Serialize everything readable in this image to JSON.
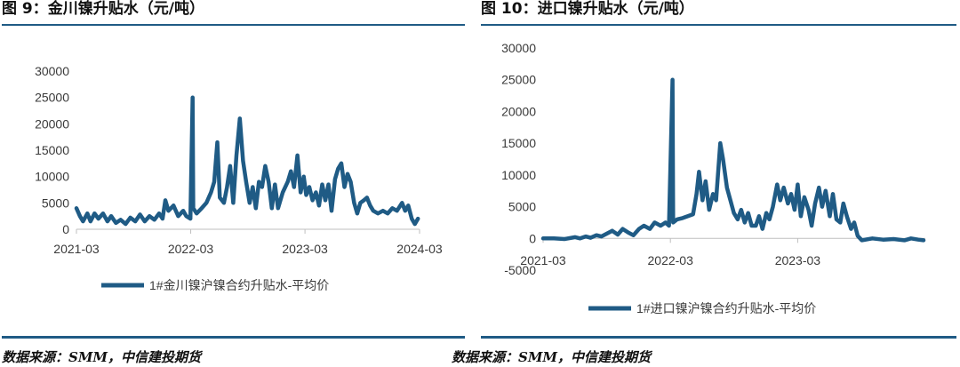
{
  "left": {
    "figure_title": "图 9：金川镍升贴水（元/吨）",
    "source": "数据来源：SMM，中信建投期货",
    "chart_data": {
      "type": "line",
      "title": "",
      "xlabel": "",
      "ylabel": "",
      "x_ticks": [
        "2021-03",
        "2022-03",
        "2023-03",
        "2024-03"
      ],
      "y_ticks": [
        "0",
        "5000",
        "10000",
        "15000",
        "20000",
        "25000",
        "30000"
      ],
      "ylim": [
        0,
        30000
      ],
      "xlim": [
        "2021-03-01",
        "2024-03-01"
      ],
      "grid": false,
      "legend_position": "bottom",
      "color": "#1f5b85",
      "series": [
        {
          "name": "1#金川镍沪镍合约升贴水-平均价",
          "points": [
            [
              "2021-03-01",
              4000
            ],
            [
              "2021-03-12",
              2500
            ],
            [
              "2021-03-22",
              1500
            ],
            [
              "2021-04-05",
              3000
            ],
            [
              "2021-04-15",
              1500
            ],
            [
              "2021-04-28",
              3000
            ],
            [
              "2021-05-10",
              2000
            ],
            [
              "2021-05-25",
              3000
            ],
            [
              "2021-06-08",
              1500
            ],
            [
              "2021-06-20",
              2500
            ],
            [
              "2021-07-05",
              1200
            ],
            [
              "2021-07-20",
              1800
            ],
            [
              "2021-08-05",
              1000
            ],
            [
              "2021-08-20",
              2200
            ],
            [
              "2021-09-05",
              1500
            ],
            [
              "2021-09-20",
              2800
            ],
            [
              "2021-10-05",
              1500
            ],
            [
              "2021-10-20",
              2500
            ],
            [
              "2021-11-05",
              1800
            ],
            [
              "2021-11-20",
              3000
            ],
            [
              "2021-12-01",
              2000
            ],
            [
              "2021-12-10",
              5500
            ],
            [
              "2021-12-20",
              3500
            ],
            [
              "2022-01-05",
              4500
            ],
            [
              "2022-01-20",
              2500
            ],
            [
              "2022-02-05",
              3500
            ],
            [
              "2022-02-15",
              2500
            ],
            [
              "2022-02-28",
              2000
            ],
            [
              "2022-03-07",
              25000
            ],
            [
              "2022-03-09",
              4000
            ],
            [
              "2022-03-20",
              3000
            ],
            [
              "2022-04-05",
              4000
            ],
            [
              "2022-04-20",
              5000
            ],
            [
              "2022-05-05",
              7000
            ],
            [
              "2022-05-15",
              9000
            ],
            [
              "2022-05-25",
              16500
            ],
            [
              "2022-06-02",
              6000
            ],
            [
              "2022-06-15",
              5000
            ],
            [
              "2022-06-25",
              8000
            ],
            [
              "2022-07-05",
              12000
            ],
            [
              "2022-07-15",
              5000
            ],
            [
              "2022-07-25",
              14000
            ],
            [
              "2022-08-05",
              21000
            ],
            [
              "2022-08-15",
              13000
            ],
            [
              "2022-08-25",
              9000
            ],
            [
              "2022-09-05",
              5000
            ],
            [
              "2022-09-15",
              8000
            ],
            [
              "2022-09-25",
              4000
            ],
            [
              "2022-10-05",
              9000
            ],
            [
              "2022-10-15",
              8000
            ],
            [
              "2022-10-25",
              12000
            ],
            [
              "2022-11-05",
              9000
            ],
            [
              "2022-11-15",
              4000
            ],
            [
              "2022-11-25",
              8500
            ],
            [
              "2022-12-05",
              4000
            ],
            [
              "2022-12-20",
              7000
            ],
            [
              "2023-01-05",
              9000
            ],
            [
              "2023-01-15",
              11000
            ],
            [
              "2023-01-25",
              8000
            ],
            [
              "2023-02-05",
              14000
            ],
            [
              "2023-02-15",
              7000
            ],
            [
              "2023-02-25",
              10000
            ],
            [
              "2023-03-05",
              6500
            ],
            [
              "2023-03-15",
              8000
            ],
            [
              "2023-03-25",
              5500
            ],
            [
              "2023-04-05",
              7000
            ],
            [
              "2023-04-15",
              4500
            ],
            [
              "2023-04-25",
              8500
            ],
            [
              "2023-05-05",
              5500
            ],
            [
              "2023-05-15",
              8500
            ],
            [
              "2023-05-25",
              3500
            ],
            [
              "2023-06-05",
              9500
            ],
            [
              "2023-06-15",
              11500
            ],
            [
              "2023-06-25",
              12500
            ],
            [
              "2023-07-05",
              8000
            ],
            [
              "2023-07-15",
              10500
            ],
            [
              "2023-07-25",
              9000
            ],
            [
              "2023-08-05",
              5000
            ],
            [
              "2023-08-15",
              3000
            ],
            [
              "2023-08-25",
              5000
            ],
            [
              "2023-09-05",
              5500
            ],
            [
              "2023-09-15",
              6000
            ],
            [
              "2023-09-25",
              4500
            ],
            [
              "2023-10-05",
              3500
            ],
            [
              "2023-10-20",
              3000
            ],
            [
              "2023-11-05",
              3500
            ],
            [
              "2023-11-20",
              3000
            ],
            [
              "2023-12-05",
              4000
            ],
            [
              "2023-12-20",
              3500
            ],
            [
              "2024-01-05",
              5000
            ],
            [
              "2024-01-15",
              3500
            ],
            [
              "2024-01-25",
              4500
            ],
            [
              "2024-02-05",
              2000
            ],
            [
              "2024-02-15",
              1000
            ],
            [
              "2024-02-25",
              2000
            ]
          ]
        }
      ]
    }
  },
  "right": {
    "figure_title": "图 10：进口镍升贴水（元/吨）",
    "source": "数据来源：SMM，中信建投期货",
    "chart_data": {
      "type": "line",
      "title": "",
      "xlabel": "",
      "ylabel": "",
      "x_ticks": [
        "2021-03",
        "2022-03",
        "2023-03"
      ],
      "y_ticks": [
        "-5000",
        "0",
        "5000",
        "10000",
        "15000",
        "20000",
        "25000",
        "30000"
      ],
      "ylim": [
        -5000,
        30000
      ],
      "xlim": [
        "2021-03-01",
        "2024-03-01"
      ],
      "grid": false,
      "legend_position": "bottom",
      "color": "#1f5b85",
      "series": [
        {
          "name": "1#进口镍沪镍合约升贴水-平均价",
          "points": [
            [
              "2021-03-01",
              0
            ],
            [
              "2021-04-01",
              0
            ],
            [
              "2021-05-01",
              -100
            ],
            [
              "2021-06-01",
              200
            ],
            [
              "2021-06-15",
              0
            ],
            [
              "2021-07-01",
              300
            ],
            [
              "2021-07-15",
              100
            ],
            [
              "2021-08-01",
              500
            ],
            [
              "2021-08-15",
              300
            ],
            [
              "2021-09-01",
              800
            ],
            [
              "2021-09-15",
              1200
            ],
            [
              "2021-10-01",
              600
            ],
            [
              "2021-10-15",
              1500
            ],
            [
              "2021-11-01",
              900
            ],
            [
              "2021-11-15",
              500
            ],
            [
              "2021-12-01",
              1500
            ],
            [
              "2021-12-15",
              2000
            ],
            [
              "2022-01-01",
              1500
            ],
            [
              "2022-01-15",
              2500
            ],
            [
              "2022-02-01",
              2000
            ],
            [
              "2022-02-15",
              2500
            ],
            [
              "2022-02-25",
              2000
            ],
            [
              "2022-03-07",
              25000
            ],
            [
              "2022-03-09",
              2500
            ],
            [
              "2022-03-20",
              3000
            ],
            [
              "2022-04-05",
              3200
            ],
            [
              "2022-04-20",
              3500
            ],
            [
              "2022-05-05",
              3800
            ],
            [
              "2022-05-15",
              7000
            ],
            [
              "2022-05-22",
              10500
            ],
            [
              "2022-06-01",
              6000
            ],
            [
              "2022-06-10",
              9000
            ],
            [
              "2022-06-20",
              4500
            ],
            [
              "2022-07-01",
              7000
            ],
            [
              "2022-07-10",
              6000
            ],
            [
              "2022-07-22",
              15000
            ],
            [
              "2022-07-30",
              12500
            ],
            [
              "2022-08-10",
              8000
            ],
            [
              "2022-08-20",
              6000
            ],
            [
              "2022-08-30",
              4000
            ],
            [
              "2022-09-10",
              3000
            ],
            [
              "2022-09-20",
              4500
            ],
            [
              "2022-09-30",
              2500
            ],
            [
              "2022-10-10",
              4000
            ],
            [
              "2022-10-20",
              2000
            ],
            [
              "2022-11-01",
              2000
            ],
            [
              "2022-11-10",
              3500
            ],
            [
              "2022-11-20",
              1500
            ],
            [
              "2022-12-01",
              4000
            ],
            [
              "2022-12-10",
              3000
            ],
            [
              "2022-12-20",
              5000
            ],
            [
              "2023-01-01",
              8500
            ],
            [
              "2023-01-10",
              6000
            ],
            [
              "2023-01-20",
              8000
            ],
            [
              "2023-02-01",
              5500
            ],
            [
              "2023-02-10",
              7000
            ],
            [
              "2023-02-20",
              4500
            ],
            [
              "2023-03-01",
              8500
            ],
            [
              "2023-03-10",
              3500
            ],
            [
              "2023-03-20",
              6500
            ],
            [
              "2023-04-01",
              4500
            ],
            [
              "2023-04-10",
              2000
            ],
            [
              "2023-04-20",
              5500
            ],
            [
              "2023-05-01",
              8000
            ],
            [
              "2023-05-10",
              5000
            ],
            [
              "2023-05-20",
              7500
            ],
            [
              "2023-06-01",
              3500
            ],
            [
              "2023-06-10",
              7000
            ],
            [
              "2023-06-20",
              3000
            ],
            [
              "2023-07-01",
              2500
            ],
            [
              "2023-07-10",
              5500
            ],
            [
              "2023-07-20",
              3500
            ],
            [
              "2023-08-01",
              1500
            ],
            [
              "2023-08-10",
              2500
            ],
            [
              "2023-08-20",
              400
            ],
            [
              "2023-09-01",
              -300
            ],
            [
              "2023-10-01",
              0
            ],
            [
              "2023-11-01",
              -200
            ],
            [
              "2023-12-01",
              -100
            ],
            [
              "2024-01-01",
              -300
            ],
            [
              "2024-01-20",
              0
            ],
            [
              "2024-02-10",
              -200
            ],
            [
              "2024-02-25",
              -300
            ]
          ]
        }
      ]
    }
  }
}
